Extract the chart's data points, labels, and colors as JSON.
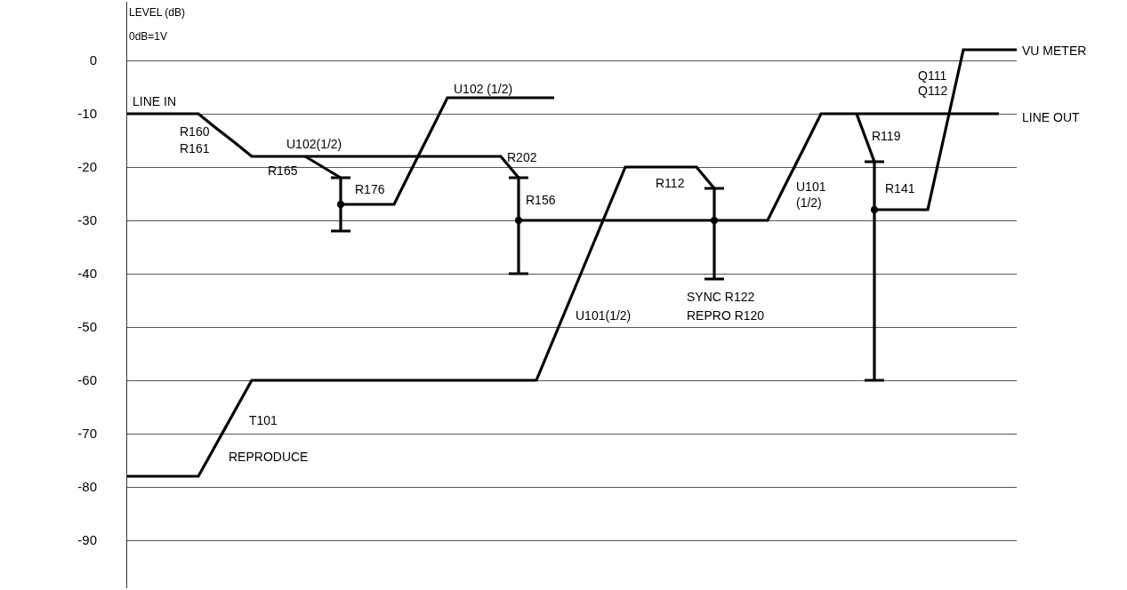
{
  "chart_data": {
    "type": "line",
    "ylabel": "LEVEL (dB)",
    "categories": [
      null,
      null,
      null,
      null,
      null,
      null,
      null,
      null,
      null,
      null,
      null,
      null,
      null,
      null,
      null,
      null,
      null,
      null,
      null,
      null,
      null,
      null,
      null,
      null,
      null,
      null,
      null,
      null,
      null,
      null,
      null,
      null,
      null,
      null,
      null,
      null,
      null,
      null,
      null,
      null,
      null,
      null,
      null,
      null,
      null,
      null,
      null,
      null,
      null,
      null,
      null
    ],
    "ylim": [
      -99,
      11
    ],
    "yticks": [
      0,
      -10,
      -20,
      -30,
      -40,
      -50,
      -60,
      -70,
      -80,
      -90
    ],
    "grid": "y",
    "legend": false,
    "tick_labels": "y",
    "marker": "none",
    "line_style": "solid",
    "series": [
      {
        "color": "#000000",
        "values": [
          -10,
          -10,
          -10,
          -10,
          -10,
          -12.7,
          -15.3,
          -18,
          -18,
          -18,
          -18,
          -18,
          -18,
          -18,
          -18,
          -18,
          -18,
          -18,
          -18,
          -18,
          -18,
          -18,
          -22,
          null,
          null,
          null,
          null,
          null,
          null,
          null,
          null,
          null,
          null,
          null,
          null,
          null,
          null,
          null,
          null,
          null,
          null,
          null,
          null,
          null,
          null,
          null,
          null,
          null,
          null,
          null,
          null
        ]
      },
      {
        "color": "#000000",
        "values": [
          null,
          null,
          null,
          null,
          null,
          null,
          null,
          null,
          null,
          null,
          -18,
          -20,
          -22,
          null,
          null,
          null,
          null,
          null,
          null,
          null,
          null,
          null,
          null,
          null,
          null,
          null,
          null,
          null,
          null,
          null,
          null,
          null,
          null,
          null,
          null,
          null,
          null,
          null,
          null,
          null,
          null,
          null,
          null,
          null,
          null,
          null,
          null,
          null,
          null,
          null,
          null
        ]
      },
      {
        "type": "scatter",
        "color": "#000000",
        "marker": "circle",
        "values": [
          null,
          null,
          null,
          null,
          null,
          null,
          null,
          null,
          null,
          null,
          null,
          null,
          -27,
          null,
          null,
          null,
          null,
          null,
          null,
          null,
          null,
          null,
          null,
          null,
          null,
          null,
          null,
          null,
          null,
          null,
          null,
          null,
          null,
          null,
          null,
          null,
          null,
          null,
          null,
          null,
          null,
          null,
          null,
          null,
          null,
          null,
          null,
          null,
          null,
          null,
          null
        ],
        "errors": [
          null,
          null,
          null,
          null,
          null,
          null,
          null,
          null,
          null,
          null,
          null,
          null,
          [
            -32,
            -22
          ],
          null,
          null,
          null,
          null,
          null,
          null,
          null,
          null,
          null,
          null,
          null,
          null,
          null,
          null,
          null,
          null,
          null,
          null,
          null,
          null,
          null,
          null,
          null,
          null,
          null,
          null,
          null,
          null,
          null,
          null,
          null,
          null,
          null,
          null,
          null,
          null,
          null,
          null
        ]
      },
      {
        "color": "#000000",
        "values": [
          null,
          null,
          null,
          null,
          null,
          null,
          null,
          null,
          null,
          null,
          null,
          null,
          -27,
          -27,
          -27,
          -27,
          -20.3,
          -13.7,
          -7,
          -7,
          -7,
          -7,
          -7,
          -7,
          -7,
          null,
          null,
          null,
          null,
          null,
          null,
          null,
          null,
          null,
          null,
          null,
          null,
          null,
          null,
          null,
          null,
          null,
          null,
          null,
          null,
          null,
          null,
          null,
          null,
          null,
          null
        ]
      },
      {
        "type": "scatter",
        "color": "#000000",
        "marker": "circle",
        "values": [
          null,
          null,
          null,
          null,
          null,
          null,
          null,
          null,
          null,
          null,
          null,
          null,
          null,
          null,
          null,
          null,
          null,
          null,
          null,
          null,
          null,
          null,
          -30,
          null,
          null,
          null,
          null,
          null,
          null,
          null,
          null,
          null,
          null,
          null,
          null,
          null,
          null,
          null,
          null,
          null,
          null,
          null,
          null,
          null,
          null,
          null,
          null,
          null,
          null,
          null,
          null
        ],
        "errors": [
          null,
          null,
          null,
          null,
          null,
          null,
          null,
          null,
          null,
          null,
          null,
          null,
          null,
          null,
          null,
          null,
          null,
          null,
          null,
          null,
          null,
          null,
          [
            -40,
            -22
          ],
          null,
          null,
          null,
          null,
          null,
          null,
          null,
          null,
          null,
          null,
          null,
          null,
          null,
          null,
          null,
          null,
          null,
          null,
          null,
          null,
          null,
          null,
          null,
          null,
          null,
          null,
          null,
          null
        ]
      },
      {
        "color": "#000000",
        "values": [
          null,
          null,
          null,
          null,
          null,
          null,
          null,
          null,
          null,
          null,
          null,
          null,
          null,
          null,
          null,
          null,
          null,
          null,
          null,
          null,
          null,
          null,
          -30,
          -30,
          -30,
          -30,
          -30,
          -30,
          -30,
          -30,
          -30,
          -30,
          -30,
          -30,
          -30,
          -30,
          -30,
          -23.3,
          -16.7,
          -10,
          -10,
          -10,
          -10,
          -10,
          -10,
          -10,
          -10,
          -10,
          -10,
          -10,
          null
        ]
      },
      {
        "color": "#000000",
        "values": [
          -78,
          -78,
          -78,
          -78,
          -78,
          -72,
          -66,
          -60,
          -60,
          -60,
          -60,
          -60,
          -60,
          -60,
          -60,
          -60,
          -60,
          -60,
          -60,
          -60,
          -60,
          -60,
          -60,
          -60,
          -52,
          -44,
          -36,
          -28,
          -20,
          -20,
          -20,
          -20,
          -20,
          -24,
          null,
          null,
          null,
          null,
          null,
          null,
          null,
          null,
          null,
          null,
          null,
          null,
          null,
          null,
          null,
          null,
          null
        ]
      },
      {
        "type": "scatter",
        "color": "#000000",
        "marker": "circle",
        "values": [
          null,
          null,
          null,
          null,
          null,
          null,
          null,
          null,
          null,
          null,
          null,
          null,
          null,
          null,
          null,
          null,
          null,
          null,
          null,
          null,
          null,
          null,
          null,
          null,
          null,
          null,
          null,
          null,
          null,
          null,
          null,
          null,
          null,
          -30,
          null,
          null,
          null,
          null,
          null,
          null,
          null,
          null,
          null,
          null,
          null,
          null,
          null,
          null,
          null,
          null,
          null
        ],
        "errors": [
          null,
          null,
          null,
          null,
          null,
          null,
          null,
          null,
          null,
          null,
          null,
          null,
          null,
          null,
          null,
          null,
          null,
          null,
          null,
          null,
          null,
          null,
          null,
          null,
          null,
          null,
          null,
          null,
          null,
          null,
          null,
          null,
          null,
          [
            -41,
            -24
          ],
          null,
          null,
          null,
          null,
          null,
          null,
          null,
          null,
          null,
          null,
          null,
          null,
          null,
          null,
          null,
          null,
          null
        ]
      },
      {
        "color": "#000000",
        "values": [
          null,
          null,
          null,
          null,
          null,
          null,
          null,
          null,
          null,
          null,
          null,
          null,
          null,
          null,
          null,
          null,
          null,
          null,
          null,
          null,
          null,
          null,
          null,
          null,
          null,
          null,
          null,
          null,
          null,
          null,
          null,
          null,
          null,
          null,
          null,
          null,
          null,
          null,
          null,
          null,
          null,
          -10,
          -19,
          null,
          null,
          null,
          null,
          null,
          null,
          null,
          null
        ]
      },
      {
        "type": "scatter",
        "color": "#000000",
        "marker": "circle",
        "values": [
          null,
          null,
          null,
          null,
          null,
          null,
          null,
          null,
          null,
          null,
          null,
          null,
          null,
          null,
          null,
          null,
          null,
          null,
          null,
          null,
          null,
          null,
          null,
          null,
          null,
          null,
          null,
          null,
          null,
          null,
          null,
          null,
          null,
          null,
          null,
          null,
          null,
          null,
          null,
          null,
          null,
          null,
          -28,
          null,
          null,
          null,
          null,
          null,
          null,
          null,
          null
        ],
        "errors": [
          null,
          null,
          null,
          null,
          null,
          null,
          null,
          null,
          null,
          null,
          null,
          null,
          null,
          null,
          null,
          null,
          null,
          null,
          null,
          null,
          null,
          null,
          null,
          null,
          null,
          null,
          null,
          null,
          null,
          null,
          null,
          null,
          null,
          null,
          null,
          null,
          null,
          null,
          null,
          null,
          null,
          null,
          [
            -60,
            -19
          ],
          null,
          null,
          null,
          null,
          null,
          null,
          null,
          null
        ]
      },
      {
        "color": "#000000",
        "values": [
          null,
          null,
          null,
          null,
          null,
          null,
          null,
          null,
          null,
          null,
          null,
          null,
          null,
          null,
          null,
          null,
          null,
          null,
          null,
          null,
          null,
          null,
          null,
          null,
          null,
          null,
          null,
          null,
          null,
          null,
          null,
          null,
          null,
          null,
          null,
          null,
          null,
          null,
          null,
          null,
          null,
          null,
          -28,
          -28,
          -28,
          -28,
          -13,
          2,
          2,
          2,
          2
        ]
      }
    ],
    "annotations": [
      "0dB=1V",
      "LINE IN",
      "R160",
      "R161",
      "U102(1/2)",
      "R165",
      "R176",
      "U102 (1/2)",
      "R202",
      "R156",
      "R112",
      "SYNC R122",
      "REPRO R120",
      "U101(1/2)",
      "U101",
      "(1/2)",
      "R119",
      "R141",
      "Q111",
      "Q112",
      "VU METER",
      "LINE OUT",
      "T101",
      "REPRODUCE"
    ]
  }
}
